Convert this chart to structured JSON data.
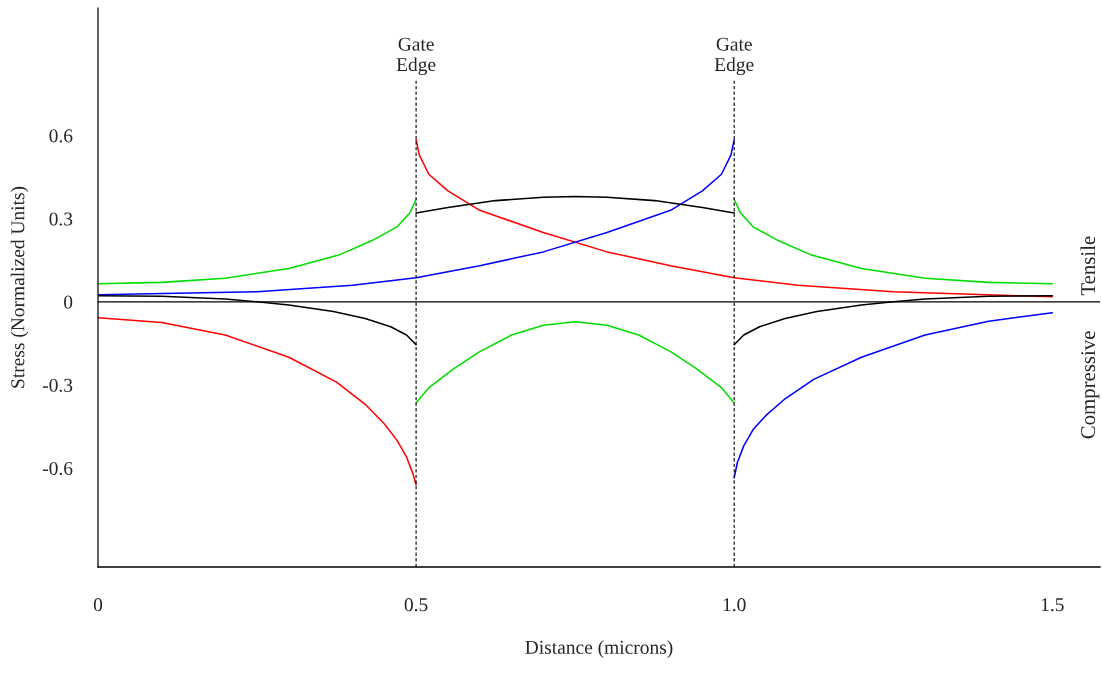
{
  "chart_data": {
    "type": "line",
    "xlabel": "Distance (microns)",
    "ylabel": "Stress (Normalized Units)",
    "xlim": [
      0,
      1.575
    ],
    "ylim": [
      -0.957,
      1.06
    ],
    "xticks": [
      0,
      0.5,
      {
        "value": 1.0,
        "label": "1.0"
      },
      1.5
    ],
    "yticks": [
      -0.6,
      -0.3,
      0,
      0.3,
      0.6
    ],
    "grid": false,
    "marker": "none",
    "line_style": "solid",
    "series": [
      {
        "color": "#ff0000",
        "x": [
          0,
          0.1,
          0.2,
          0.3,
          0.375,
          0.42,
          0.45,
          0.47,
          0.485,
          0.495,
          0.5
        ],
        "values": [
          -0.058,
          -0.075,
          -0.12,
          -0.2,
          -0.29,
          -0.37,
          -0.44,
          -0.5,
          -0.56,
          -0.62,
          -0.66
        ]
      },
      {
        "color": "#ff0000",
        "x": [
          0.5,
          0.505,
          0.52,
          0.55,
          0.6,
          0.7,
          0.8,
          0.9,
          1.0,
          1.1,
          1.25,
          1.5
        ],
        "values": [
          0.585,
          0.53,
          0.46,
          0.4,
          0.33,
          0.25,
          0.18,
          0.13,
          0.087,
          0.06,
          0.036,
          0.018
        ]
      },
      {
        "color": "#0000ff",
        "x": [
          0,
          0.25,
          0.4,
          0.5,
          0.6,
          0.7,
          0.8,
          0.9,
          0.95,
          0.98,
          0.995,
          1.0
        ],
        "values": [
          0.025,
          0.036,
          0.06,
          0.087,
          0.13,
          0.18,
          0.25,
          0.33,
          0.4,
          0.46,
          0.53,
          0.585
        ]
      },
      {
        "color": "#0000ff",
        "x": [
          1.0,
          1.005,
          1.015,
          1.03,
          1.05,
          1.08,
          1.125,
          1.2,
          1.3,
          1.4,
          1.5
        ],
        "values": [
          -0.635,
          -0.58,
          -0.52,
          -0.46,
          -0.41,
          -0.35,
          -0.28,
          -0.2,
          -0.12,
          -0.07,
          -0.04
        ]
      },
      {
        "color": "#00dd00",
        "x": [
          0,
          0.1,
          0.2,
          0.3,
          0.38,
          0.43,
          0.47,
          0.49,
          0.5
        ],
        "values": [
          0.065,
          0.07,
          0.085,
          0.12,
          0.17,
          0.22,
          0.27,
          0.32,
          0.37
        ]
      },
      {
        "color": "#00dd00",
        "x": [
          0.5,
          0.52,
          0.56,
          0.6,
          0.65,
          0.7,
          0.75,
          0.8,
          0.85,
          0.9,
          0.94,
          0.98,
          1.0
        ],
        "values": [
          -0.365,
          -0.31,
          -0.24,
          -0.18,
          -0.12,
          -0.085,
          -0.072,
          -0.085,
          -0.12,
          -0.18,
          -0.24,
          -0.31,
          -0.365
        ]
      },
      {
        "color": "#00dd00",
        "x": [
          1.0,
          1.01,
          1.03,
          1.07,
          1.12,
          1.2,
          1.3,
          1.4,
          1.5
        ],
        "values": [
          0.37,
          0.32,
          0.27,
          0.22,
          0.17,
          0.12,
          0.085,
          0.07,
          0.065
        ]
      },
      {
        "color": "#000000",
        "x": [
          0,
          0.1,
          0.2,
          0.25,
          0.3,
          0.37,
          0.42,
          0.46,
          0.485,
          0.5
        ],
        "values": [
          0.022,
          0.02,
          0.01,
          0.0,
          -0.012,
          -0.035,
          -0.06,
          -0.09,
          -0.12,
          -0.155
        ]
      },
      {
        "color": "#000000",
        "x": [
          0.5,
          0.55,
          0.625,
          0.7,
          0.75,
          0.8,
          0.875,
          0.95,
          1.0
        ],
        "values": [
          0.32,
          0.34,
          0.365,
          0.377,
          0.38,
          0.377,
          0.365,
          0.34,
          0.32
        ]
      },
      {
        "color": "#000000",
        "x": [
          1.0,
          1.015,
          1.04,
          1.08,
          1.13,
          1.2,
          1.25,
          1.3,
          1.4,
          1.5
        ],
        "values": [
          -0.155,
          -0.12,
          -0.09,
          -0.06,
          -0.035,
          -0.012,
          0.0,
          0.01,
          0.02,
          0.022
        ]
      }
    ],
    "ref_lines": [
      {
        "axis": "y",
        "value": 0,
        "color": "#000000",
        "line_style": "solid"
      },
      {
        "axis": "x",
        "value": 0.5,
        "label": "Gate\nEdge",
        "color": "#000000",
        "line_style": "dashed"
      },
      {
        "axis": "x",
        "value": 1.0,
        "label": "Gate\nEdge",
        "color": "#000000",
        "line_style": "dashed"
      }
    ],
    "annotations": [
      "Tensile",
      "Compressive"
    ]
  }
}
